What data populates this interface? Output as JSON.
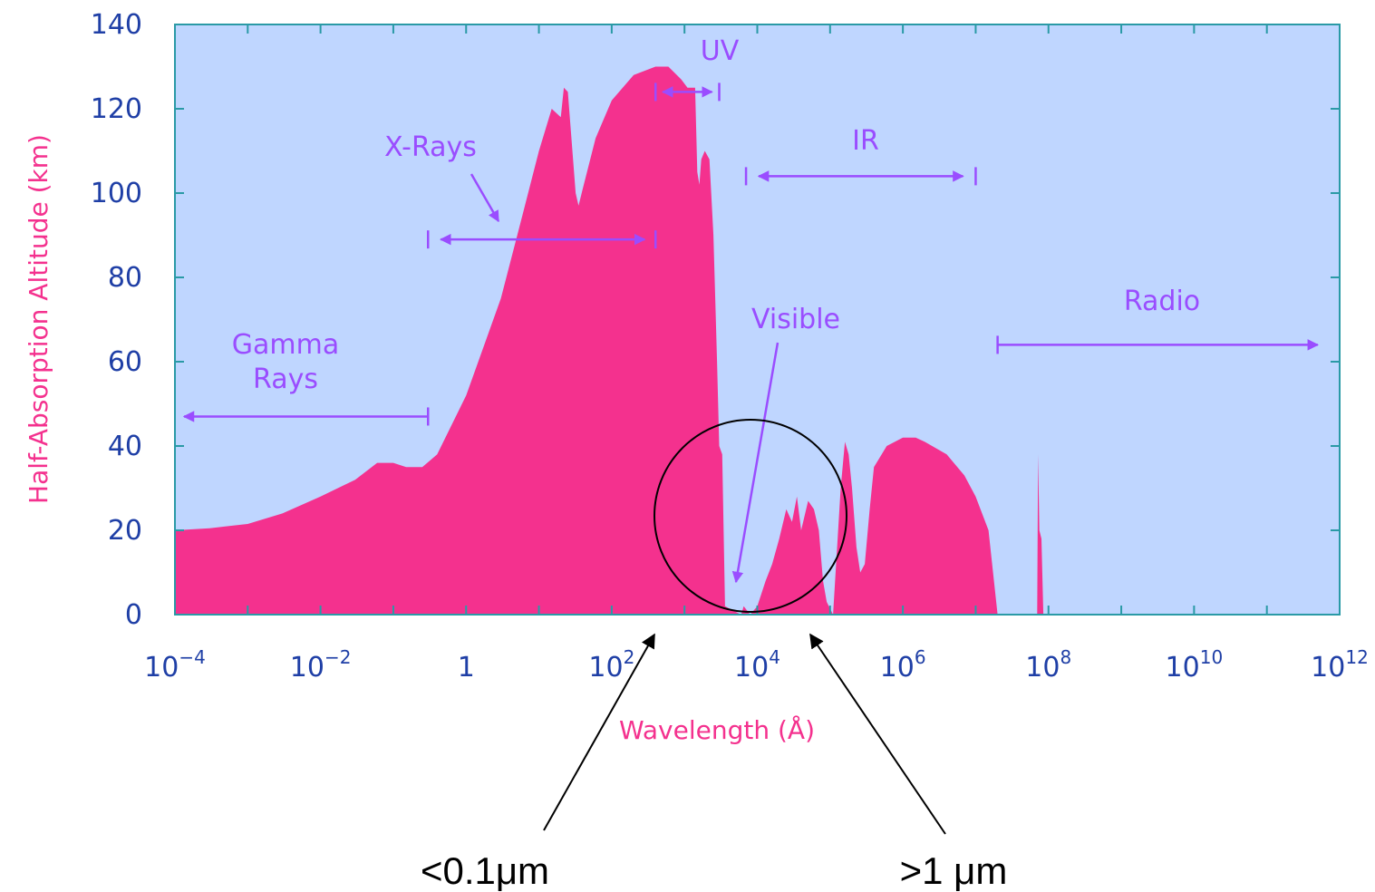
{
  "chart_data": {
    "type": "area",
    "title": "",
    "xlabel": "Wavelength (Å)",
    "ylabel": "Half-Absorption Altitude (km)",
    "x_scale": "log10",
    "xlim": [
      0.0001,
      1000000000000
    ],
    "ylim": [
      0,
      140
    ],
    "grid": false,
    "legend": "none",
    "yticks": [
      0,
      20,
      40,
      60,
      80,
      100,
      120,
      140
    ],
    "xticks": [
      {
        "base": "10",
        "exp": "−4"
      },
      {
        "base": "10",
        "exp": "−2"
      },
      {
        "base": "1",
        "exp": ""
      },
      {
        "base": "10",
        "exp": "2"
      },
      {
        "base": "10",
        "exp": "4"
      },
      {
        "base": "10",
        "exp": "6"
      },
      {
        "base": "10",
        "exp": "8"
      },
      {
        "base": "10",
        "exp": "10"
      },
      {
        "base": "10",
        "exp": "12"
      }
    ],
    "series": [
      {
        "points": [
          [
            0.0001,
            20
          ],
          [
            0.0003,
            20.5
          ],
          [
            0.001,
            21.5
          ],
          [
            0.003,
            24
          ],
          [
            0.01,
            28
          ],
          [
            0.03,
            32
          ],
          [
            0.06,
            36
          ],
          [
            0.1,
            36
          ],
          [
            0.15,
            35
          ],
          [
            0.25,
            35
          ],
          [
            0.4,
            38
          ],
          [
            1,
            52
          ],
          [
            3,
            75
          ],
          [
            6,
            95
          ],
          [
            10,
            110
          ],
          [
            15,
            120
          ],
          [
            20,
            118
          ],
          [
            22,
            125
          ],
          [
            25,
            124
          ],
          [
            32,
            100
          ],
          [
            35,
            97
          ],
          [
            40,
            101
          ],
          [
            60,
            113
          ],
          [
            100,
            122
          ],
          [
            200,
            128
          ],
          [
            400,
            130
          ],
          [
            600,
            130
          ],
          [
            900,
            127
          ],
          [
            1100,
            125
          ],
          [
            1400,
            125
          ],
          [
            1500,
            105
          ],
          [
            1600,
            102
          ],
          [
            1700,
            108
          ],
          [
            1900,
            110
          ],
          [
            2200,
            108
          ],
          [
            2500,
            90
          ],
          [
            2800,
            60
          ],
          [
            3000,
            40
          ],
          [
            3300,
            38
          ],
          [
            3600,
            2
          ],
          [
            6000,
            0
          ],
          [
            6500,
            2
          ],
          [
            8000,
            0
          ],
          [
            10000,
            2
          ],
          [
            13000,
            8
          ],
          [
            16000,
            12
          ],
          [
            20000,
            18
          ],
          [
            25000,
            25
          ],
          [
            30000,
            22
          ],
          [
            35000,
            28
          ],
          [
            40000,
            20
          ],
          [
            50000,
            27
          ],
          [
            60000,
            25
          ],
          [
            70000,
            20
          ],
          [
            80000,
            8
          ],
          [
            90000,
            3
          ],
          [
            110000,
            0
          ],
          [
            140000,
            30
          ],
          [
            160000,
            41
          ],
          [
            180000,
            38
          ],
          [
            200000,
            30
          ],
          [
            230000,
            16
          ],
          [
            260000,
            10
          ],
          [
            300000,
            12
          ],
          [
            350000,
            25
          ],
          [
            400000,
            35
          ],
          [
            600000,
            40
          ],
          [
            1000000,
            42
          ],
          [
            1500000,
            42
          ],
          [
            2000000,
            41
          ],
          [
            4000000,
            38
          ],
          [
            7000000,
            33
          ],
          [
            10000000,
            28
          ],
          [
            15000000,
            20
          ],
          [
            20000000,
            0
          ],
          [
            70000000,
            0
          ],
          [
            72000000,
            38
          ],
          [
            75000000,
            20
          ],
          [
            80000000,
            18
          ],
          [
            85000000,
            0
          ],
          [
            1000000000000,
            0
          ]
        ]
      }
    ],
    "annotations": [
      {
        "id": "gamma",
        "lines": [
          "Gamma",
          "Rays"
        ],
        "range": [
          0.0001,
          0.3
        ]
      },
      {
        "id": "xray",
        "lines": [
          "X-Rays"
        ],
        "range": [
          0.3,
          400
        ]
      },
      {
        "id": "uv",
        "lines": [
          "UV"
        ],
        "range": [
          400,
          3000
        ]
      },
      {
        "id": "visible",
        "lines": [
          "Visible"
        ],
        "range": [
          4000,
          7000
        ]
      },
      {
        "id": "ir",
        "lines": [
          "IR"
        ],
        "range": [
          7000,
          10000000
        ]
      },
      {
        "id": "radio",
        "lines": [
          "Radio"
        ],
        "range": [
          20000000,
          500000000000
        ]
      }
    ],
    "callouts": [
      {
        "id": "short",
        "text": "<0.1μm"
      },
      {
        "id": "long",
        "text": ">1 μm"
      }
    ],
    "colors": {
      "background": "#bfd6ff",
      "fill": "#f4318e",
      "axis_label": "#f4318e",
      "ticks": "#2a9aa6",
      "tick_text": "#1f3fa6",
      "annotation": "#9a4dff",
      "callout": "#000000"
    }
  }
}
